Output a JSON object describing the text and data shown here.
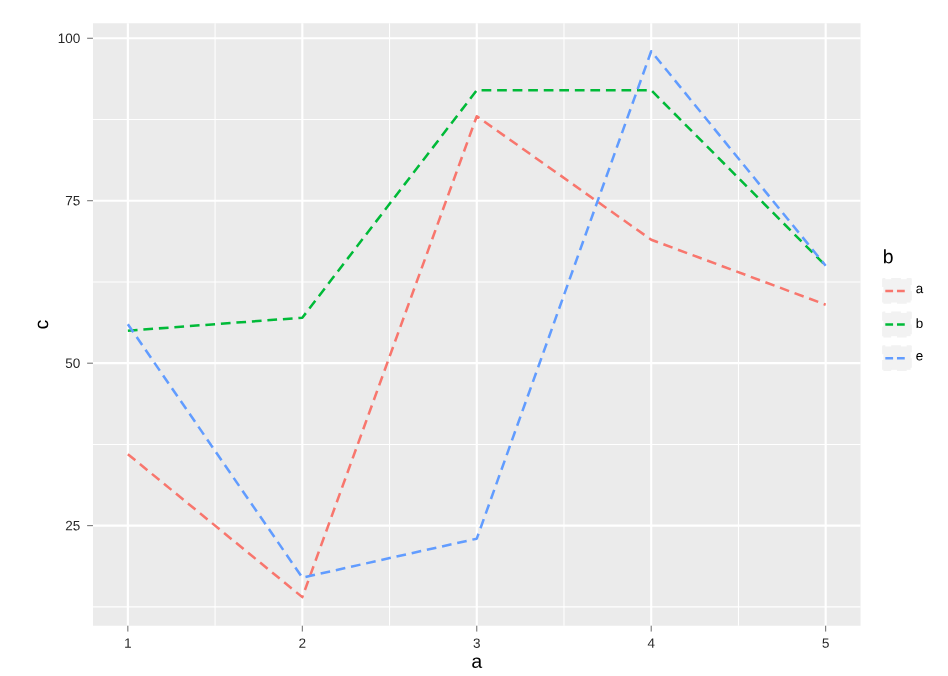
{
  "chart_data": {
    "type": "line",
    "xlabel": "a",
    "ylabel": "c",
    "legend_title": "b",
    "x": [
      1,
      2,
      3,
      4,
      5
    ],
    "series": [
      {
        "name": "a",
        "color": "#f8766d",
        "values": [
          36,
          14,
          88,
          69,
          59
        ]
      },
      {
        "name": "b",
        "color": "#00ba38",
        "values": [
          55,
          57,
          92,
          92,
          65
        ]
      },
      {
        "name": "e",
        "color": "#619cff",
        "values": [
          56,
          17,
          23,
          98,
          65
        ]
      }
    ],
    "xlim": [
      0.8,
      5.2
    ],
    "ylim": [
      9.6,
      102.3
    ],
    "xticks": [
      1,
      2,
      3,
      4,
      5
    ],
    "yticks": [
      25,
      50,
      75,
      100
    ],
    "grid": true,
    "legend": "right",
    "line_style": "dashed"
  }
}
